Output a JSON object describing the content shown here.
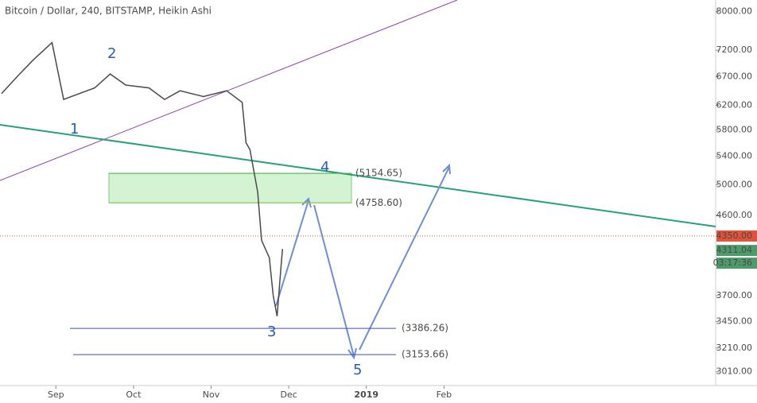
{
  "chart_data": {
    "type": "line",
    "title": "Bitcoin / Dollar, 240, BITSTAMP, Heikin Ashi",
    "log_scale": true,
    "x": [
      8.3,
      8.5,
      8.7,
      8.95,
      9.1,
      9.3,
      9.5,
      9.7,
      9.9,
      10.2,
      10.4,
      10.6,
      10.9,
      11.2,
      11.4,
      11.45,
      11.5,
      11.6,
      11.65,
      11.75,
      11.8,
      11.85,
      11.9,
      11.92
    ],
    "series": [
      {
        "color": "#4a4a4a",
        "values": [
          6400,
          6700,
          7000,
          7350,
          6300,
          6400,
          6500,
          6750,
          6550,
          6500,
          6300,
          6450,
          6350,
          6450,
          6250,
          5600,
          5500,
          4900,
          4300,
          4100,
          3700,
          3500,
          4000,
          4200
        ]
      }
    ],
    "xlim": [
      8.28,
      17.5
    ],
    "ylim": [
      2900,
      8250
    ],
    "xticks": [
      {
        "value": 9,
        "label": "Sep"
      },
      {
        "value": 10,
        "label": "Oct"
      },
      {
        "value": 11,
        "label": "Nov"
      },
      {
        "value": 12,
        "label": "Dec"
      },
      {
        "value": 13,
        "label": "2019"
      },
      {
        "value": 14,
        "label": "Feb"
      }
    ],
    "yticks": [
      {
        "value": 8000,
        "label": "8000.00"
      },
      {
        "value": 7200,
        "label": "7200.00"
      },
      {
        "value": 6700,
        "label": "6700.00"
      },
      {
        "value": 6200,
        "label": "6200.00"
      },
      {
        "value": 5800,
        "label": "5800.00"
      },
      {
        "value": 5400,
        "label": "5400.00"
      },
      {
        "value": 5000,
        "label": "5000.00"
      },
      {
        "value": 4600,
        "label": "4600.00"
      },
      {
        "value": 3700,
        "label": "3700.00"
      },
      {
        "value": 3450,
        "label": "3450.00"
      },
      {
        "value": 3210,
        "label": "3210.00"
      },
      {
        "value": 3010,
        "label": "3010.00"
      }
    ],
    "levels": [
      {
        "value": 5154.65,
        "label": "(5154.65)",
        "color": "#4caf50"
      },
      {
        "value": 4758.6,
        "label": "(4758.60)",
        "color": "#8bc34a"
      },
      {
        "value": 3386.26,
        "label": "(3386.26)",
        "color": "#3f51b5"
      },
      {
        "value": 3153.66,
        "label": "(3153.66)",
        "color": "#3f51b5"
      }
    ],
    "price_tags": [
      {
        "value": 4350,
        "label": "4350.00",
        "color": "#e0523a"
      },
      {
        "value": 4311.04,
        "label": "4311.04",
        "color": "#4e9a6a"
      }
    ],
    "timer": "03:17:36",
    "waves": [
      "1",
      "2",
      "3",
      "4",
      "5"
    ]
  }
}
